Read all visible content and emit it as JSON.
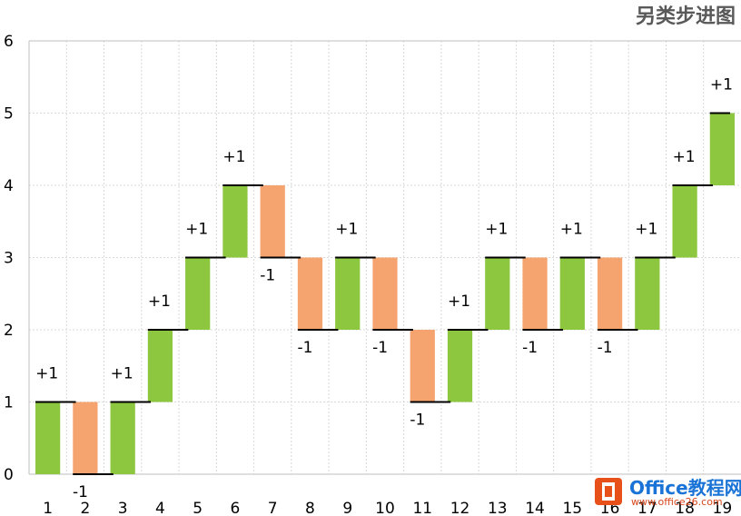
{
  "chart_data": {
    "type": "bar",
    "title": "另类步进图",
    "categories": [
      "1",
      "2",
      "3",
      "4",
      "5",
      "6",
      "7",
      "8",
      "9",
      "10",
      "11",
      "12",
      "13",
      "14",
      "15",
      "16",
      "17",
      "18",
      "19"
    ],
    "steps": [
      1,
      -1,
      1,
      1,
      1,
      1,
      -1,
      -1,
      1,
      -1,
      -1,
      1,
      1,
      -1,
      1,
      -1,
      1,
      1,
      1
    ],
    "levels_before": [
      0,
      1,
      0,
      1,
      2,
      3,
      4,
      3,
      2,
      3,
      2,
      1,
      2,
      3,
      2,
      3,
      2,
      3,
      4
    ],
    "levels_after": [
      1,
      0,
      1,
      2,
      3,
      4,
      3,
      2,
      3,
      2,
      1,
      2,
      3,
      2,
      3,
      2,
      3,
      4,
      5
    ],
    "step_labels": [
      "+1",
      "-1",
      "+1",
      "+1",
      "+1",
      "+1",
      "-1",
      "-1",
      "+1",
      "-1",
      "-1",
      "+1",
      "+1",
      "-1",
      "+1",
      "-1",
      "+1",
      "+1",
      "+1"
    ],
    "yticks": [
      "0",
      "1",
      "2",
      "3",
      "4",
      "5",
      "6"
    ],
    "ylim": [
      0,
      6
    ],
    "grid": true,
    "colors": {
      "up": "#8dc63f",
      "down": "#f5a470",
      "step_line": "#000000",
      "grid": "#d9d9d9",
      "axis": "#bfbfbf"
    }
  },
  "watermark": {
    "name": "Office教程网",
    "url": "www.office26.com"
  }
}
